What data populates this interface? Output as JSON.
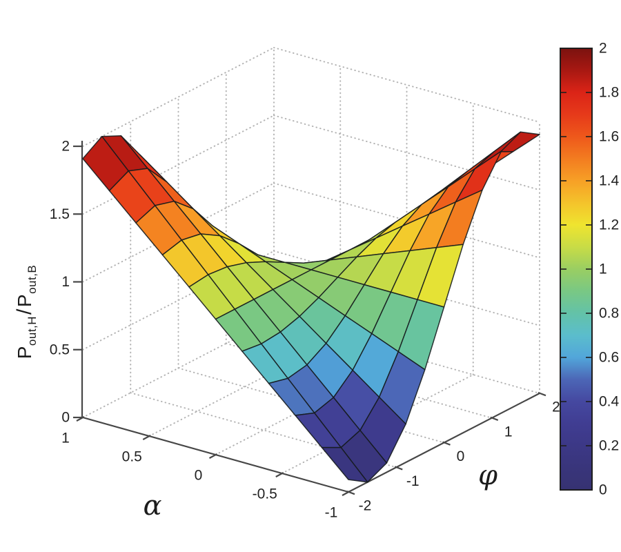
{
  "figure": {
    "background": "#ffffff",
    "axis_color": "#474747",
    "grid_color": "#b4b4b4",
    "mesh_edge_color": "#141a1c",
    "text_color": "#222222",
    "xlabel": "α",
    "ylabel": "φ",
    "zlabel": {
      "p1": "P",
      "s1": "out,H",
      "sep": "/",
      "p2": "P",
      "s2": "out,B"
    }
  },
  "chart_data": {
    "type": "surface",
    "title": "",
    "xlabel": "α",
    "ylabel": "φ",
    "zlabel": "P_out,H / P_out,B",
    "x_range": [
      -1,
      1
    ],
    "y_range": [
      -2,
      2
    ],
    "z_range": [
      0,
      2
    ],
    "x_ticks": {
      "labels": [
        "1",
        "0.5",
        "0",
        "-0.5",
        "-1"
      ],
      "values": [
        1,
        0.5,
        0,
        -0.5,
        -1
      ]
    },
    "y_ticks": {
      "labels": [
        "-2",
        "-1",
        "0",
        "1",
        "2"
      ],
      "values": [
        -2,
        -1,
        0,
        1,
        2
      ]
    },
    "z_ticks": {
      "labels": [
        "0",
        "0.5",
        "1",
        "1.5",
        "2"
      ],
      "values": [
        0,
        0.5,
        1,
        1.5,
        2
      ]
    },
    "surface": {
      "formula": "z = 1 - alpha*sin(phi)",
      "alpha_samples": [
        1,
        0.8,
        0.6,
        0.4,
        0.2,
        0,
        -0.2,
        -0.4,
        -0.6,
        -0.8,
        -1
      ],
      "phi_samples": [
        -2,
        -1.6,
        -1.2,
        -0.8,
        -0.4,
        0,
        0.4,
        0.8,
        1.2,
        1.6,
        2
      ],
      "z": [
        [
          1.909,
          2.0,
          1.932,
          1.717,
          1.389,
          1.0,
          0.611,
          0.283,
          0.068,
          0.0,
          0.091
        ],
        [
          1.727,
          1.8,
          1.746,
          1.574,
          1.311,
          1.0,
          0.689,
          0.426,
          0.254,
          0.2,
          0.273
        ],
        [
          1.545,
          1.6,
          1.559,
          1.43,
          1.233,
          1.0,
          0.767,
          0.57,
          0.441,
          0.4,
          0.455
        ],
        [
          1.364,
          1.4,
          1.373,
          1.287,
          1.156,
          1.0,
          0.844,
          0.713,
          0.627,
          0.6,
          0.636
        ],
        [
          1.182,
          1.2,
          1.186,
          1.143,
          1.078,
          1.0,
          0.922,
          0.857,
          0.814,
          0.8,
          0.818
        ],
        [
          1.0,
          1.0,
          1.0,
          1.0,
          1.0,
          1.0,
          1.0,
          1.0,
          1.0,
          1.0,
          1.0
        ],
        [
          0.818,
          0.8,
          0.814,
          0.857,
          0.922,
          1.0,
          1.078,
          1.143,
          1.186,
          1.2,
          1.182
        ],
        [
          0.636,
          0.6,
          0.627,
          0.713,
          0.844,
          1.0,
          1.156,
          1.287,
          1.373,
          1.4,
          1.364
        ],
        [
          0.455,
          0.4,
          0.441,
          0.57,
          0.767,
          1.0,
          1.233,
          1.43,
          1.559,
          1.6,
          1.545
        ],
        [
          0.273,
          0.2,
          0.254,
          0.426,
          0.689,
          1.0,
          1.311,
          1.574,
          1.746,
          1.8,
          1.727
        ],
        [
          0.091,
          0.0,
          0.068,
          0.283,
          0.611,
          1.0,
          1.389,
          1.717,
          1.932,
          2.0,
          1.909
        ]
      ]
    },
    "colorbar": {
      "min": 0,
      "max": 2,
      "tick_labels": [
        "0",
        "0.2",
        "0.4",
        "0.6",
        "0.8",
        "1",
        "1.2",
        "1.4",
        "1.6",
        "1.8",
        "2"
      ],
      "tick_values": [
        0,
        0.2,
        0.4,
        0.6,
        0.8,
        1,
        1.2,
        1.4,
        1.6,
        1.8,
        2
      ]
    },
    "colormap": [
      [
        0.0,
        "#363272"
      ],
      [
        0.1,
        "#39357B"
      ],
      [
        0.2,
        "#3C3886"
      ],
      [
        0.3,
        "#403D92"
      ],
      [
        0.4,
        "#4548A0"
      ],
      [
        0.5,
        "#4C66B6"
      ],
      [
        0.6,
        "#52A6DA"
      ],
      [
        0.7,
        "#5BBDCC"
      ],
      [
        0.8,
        "#63C2A8"
      ],
      [
        0.9,
        "#79C884"
      ],
      [
        1.0,
        "#9ACE62"
      ],
      [
        1.1,
        "#C8DC46"
      ],
      [
        1.2,
        "#EFE42F"
      ],
      [
        1.3,
        "#F4C32B"
      ],
      [
        1.4,
        "#F7A026"
      ],
      [
        1.5,
        "#F37C20"
      ],
      [
        1.6,
        "#EE581B"
      ],
      [
        1.7,
        "#E63A1A"
      ],
      [
        1.8,
        "#DB2417"
      ],
      [
        1.9,
        "#A81812"
      ],
      [
        2.0,
        "#7B120F"
      ]
    ],
    "grid": true,
    "legend_position": "colorbar-right"
  }
}
